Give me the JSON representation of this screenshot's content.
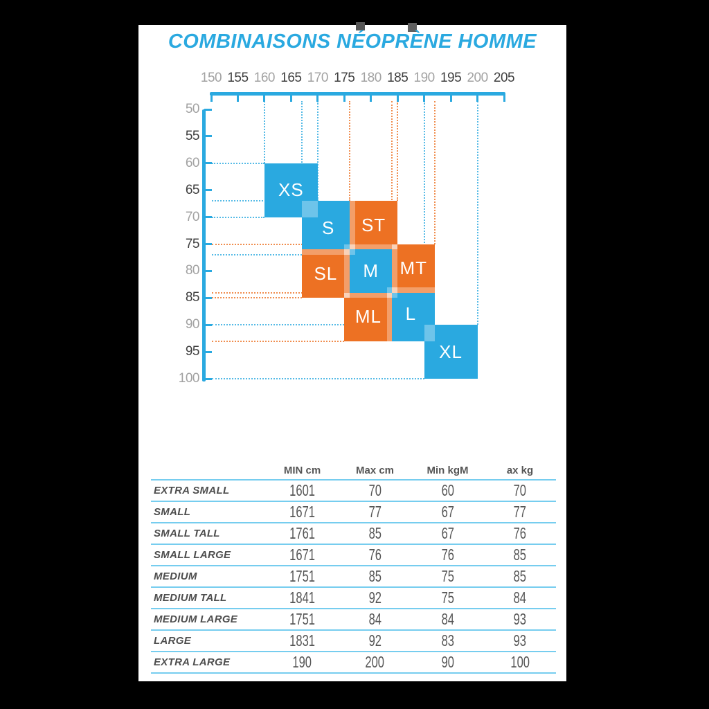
{
  "title": "COMBINAISONS NÉOPRÈNE HOMME",
  "colors": {
    "blue": "#2AA9E0",
    "orange": "#ED7123",
    "axis": "#2AA9E0",
    "table_rule": "#76CDEF",
    "tick_dark": "#3F3F3F",
    "tick_gray": "#A2A2A2",
    "title_blue": "#2AA9E0",
    "block_text": "#FFFFFF"
  },
  "chart_data": {
    "type": "area",
    "title": "Men wetsuit size regions by height (cm) and weight (kg)",
    "x_axis": {
      "unit": "cm",
      "min": 150,
      "max": 205,
      "step": 5,
      "ticks": [
        150,
        155,
        160,
        165,
        170,
        175,
        180,
        185,
        190,
        195,
        200,
        205
      ]
    },
    "y_axis": {
      "unit": "kg",
      "min": 50,
      "max": 100,
      "step": 5,
      "ticks": [
        50,
        55,
        60,
        65,
        70,
        75,
        80,
        85,
        90,
        95,
        100
      ]
    },
    "blocks": [
      {
        "label": "XS",
        "cm_min": 160,
        "cm_max": 170,
        "kg_min": 60,
        "kg_max": 70,
        "color": "blue"
      },
      {
        "label": "S",
        "cm_min": 167,
        "cm_max": 177,
        "kg_min": 67,
        "kg_max": 77,
        "color": "blue"
      },
      {
        "label": "M",
        "cm_min": 175,
        "cm_max": 185,
        "kg_min": 75,
        "kg_max": 85,
        "color": "blue"
      },
      {
        "label": "L",
        "cm_min": 183,
        "cm_max": 192,
        "kg_min": 83,
        "kg_max": 93,
        "color": "blue"
      },
      {
        "label": "XL",
        "cm_min": 190,
        "cm_max": 200,
        "kg_min": 90,
        "kg_max": 100,
        "color": "blue"
      },
      {
        "label": "ST",
        "cm_min": 176,
        "cm_max": 185,
        "kg_min": 67,
        "kg_max": 76,
        "color": "orange"
      },
      {
        "label": "SL",
        "cm_min": 167,
        "cm_max": 176,
        "kg_min": 76,
        "kg_max": 85,
        "color": "orange"
      },
      {
        "label": "MT",
        "cm_min": 184,
        "cm_max": 192,
        "kg_min": 75,
        "kg_max": 84,
        "color": "orange"
      },
      {
        "label": "ML",
        "cm_min": 175,
        "cm_max": 184,
        "kg_min": 84,
        "kg_max": 93,
        "color": "orange"
      }
    ],
    "v_guides": [
      {
        "cm": 160,
        "color": "blue",
        "to_kg": 60
      },
      {
        "cm": 167,
        "color": "blue",
        "to_kg": 67
      },
      {
        "cm": 170,
        "color": "blue",
        "to_kg": 67
      },
      {
        "cm": 176,
        "color": "orange",
        "to_kg": 67
      },
      {
        "cm": 184,
        "color": "orange",
        "to_kg": 75
      },
      {
        "cm": 185,
        "color": "orange",
        "to_kg": 67
      },
      {
        "cm": 190,
        "color": "blue",
        "to_kg": 83
      },
      {
        "cm": 192,
        "color": "orange",
        "to_kg": 75
      },
      {
        "cm": 200,
        "color": "blue",
        "to_kg": 90
      }
    ],
    "h_guides": [
      {
        "kg": 60,
        "color": "blue",
        "to_cm": 160
      },
      {
        "kg": 67,
        "color": "blue",
        "to_cm": 167
      },
      {
        "kg": 70,
        "color": "blue",
        "to_cm": 160
      },
      {
        "kg": 75,
        "color": "orange",
        "to_cm": 175
      },
      {
        "kg": 77,
        "color": "blue",
        "to_cm": 167
      },
      {
        "kg": 84,
        "color": "orange",
        "to_cm": 175
      },
      {
        "kg": 85,
        "color": "orange",
        "to_cm": 167
      },
      {
        "kg": 90,
        "color": "blue",
        "to_cm": 190
      },
      {
        "kg": 93,
        "color": "orange",
        "to_cm": 175
      },
      {
        "kg": 100,
        "color": "blue",
        "to_cm": 190
      }
    ]
  },
  "table": {
    "headers": [
      "",
      "MIN cm",
      "Max cm",
      "Min kgM",
      "ax kg"
    ],
    "rows": [
      {
        "label": "EXTRA SMALL",
        "values": [
          "1601",
          "70",
          "60",
          "70"
        ]
      },
      {
        "label": "SMALL",
        "values": [
          "1671",
          "77",
          "67",
          "77"
        ]
      },
      {
        "label": "SMALL TALL",
        "values": [
          "1761",
          "85",
          "67",
          "76"
        ]
      },
      {
        "label": "SMALL LARGE",
        "values": [
          "1671",
          "76",
          "76",
          "85"
        ]
      },
      {
        "label": "MEDIUM",
        "values": [
          "1751",
          "85",
          "75",
          "85"
        ]
      },
      {
        "label": "MEDIUM TALL",
        "values": [
          "1841",
          "92",
          "75",
          "84"
        ]
      },
      {
        "label": "MEDIUM LARGE",
        "values": [
          "1751",
          "84",
          "84",
          "93"
        ]
      },
      {
        "label": "LARGE",
        "values": [
          "1831",
          "92",
          "83",
          "93"
        ]
      },
      {
        "label": "EXTRA LARGE",
        "values": [
          "190",
          "200",
          "90",
          "100"
        ]
      }
    ]
  }
}
